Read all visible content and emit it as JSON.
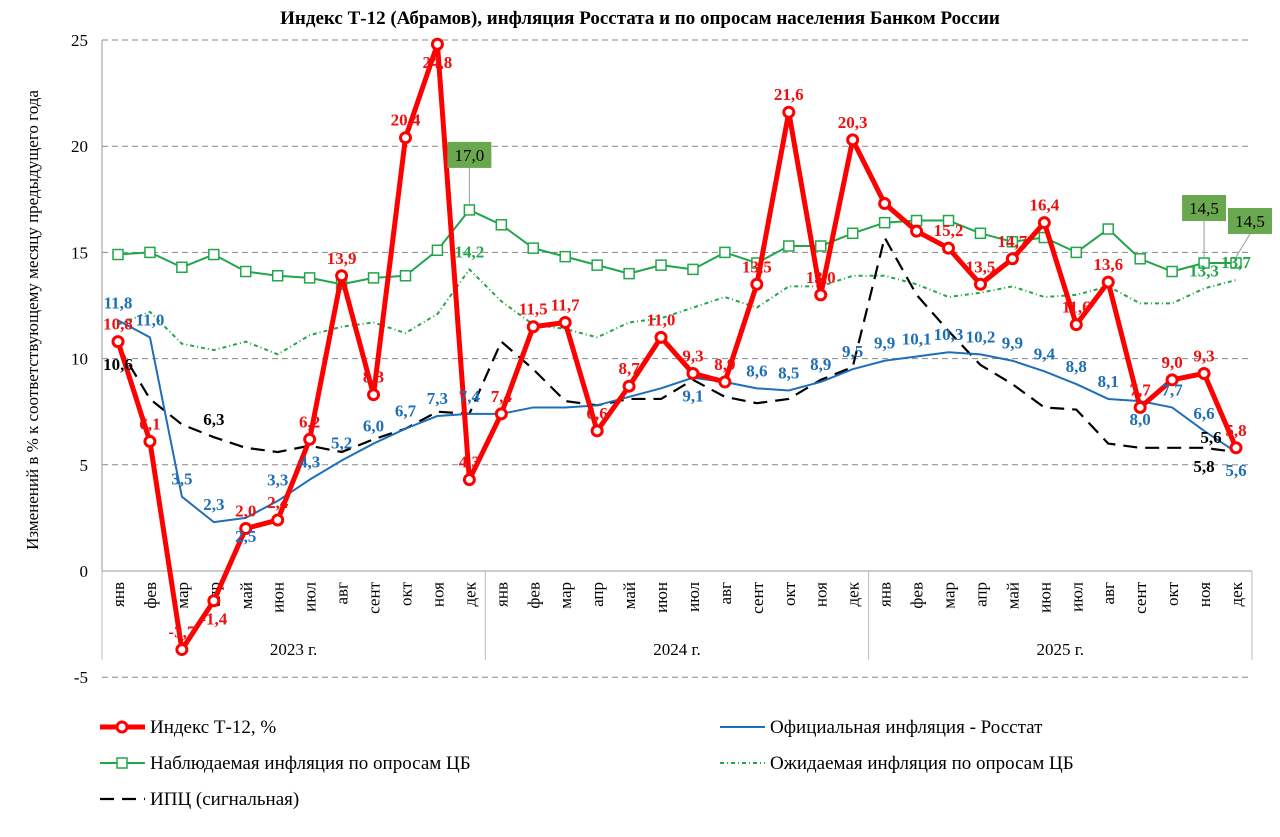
{
  "chart_data": {
    "type": "line",
    "title": "Индекс Т-12 (Абрамов), инфляция Росстата и по опросам населения Банком России",
    "ylabel": "Изменений в % к соответствующему месяцу предыдущего года",
    "xlabel": "",
    "ylim": [
      -5,
      25
    ],
    "yticks": [
      -5,
      0,
      5,
      10,
      15,
      20,
      25
    ],
    "grid": "horizontal dashed",
    "legend_position": "bottom",
    "categories": [
      "янв",
      "фев",
      "мар",
      "апр",
      "май",
      "июн",
      "июл",
      "авг",
      "сент",
      "окт",
      "ноя",
      "дек",
      "янв",
      "фев",
      "мар",
      "апр",
      "май",
      "июн",
      "июл",
      "авг",
      "сент",
      "окт",
      "ноя",
      "дек",
      "янв",
      "фев",
      "мар",
      "апр",
      "май",
      "июн",
      "июл",
      "авг",
      "сент",
      "окт",
      "ноя",
      "дек"
    ],
    "years": [
      "2023 г.",
      "2024 г.",
      "2025 г."
    ],
    "series": [
      {
        "name": "Индекс Т-12, %",
        "color": "#ff0000",
        "style": "thick line with circle markers",
        "values": [
          10.8,
          6.1,
          -3.7,
          -1.4,
          2.0,
          2.4,
          6.2,
          13.9,
          8.3,
          20.4,
          24.8,
          4.3,
          7.4,
          11.5,
          11.7,
          6.6,
          8.7,
          11.0,
          9.3,
          8.9,
          13.5,
          21.6,
          13.0,
          20.3,
          17.3,
          16.0,
          15.2,
          13.5,
          14.7,
          16.4,
          11.6,
          13.6,
          7.7,
          9.0,
          9.3,
          5.8
        ],
        "labels": [
          "10,8",
          "6,1",
          "-3,7",
          "-1,4",
          "2,0",
          "2,4",
          "6,2",
          "13,9",
          "8,3",
          "20,4",
          "24,8",
          "4,3",
          "7,4",
          "11,5",
          "11,7",
          "6,6",
          "8,7",
          "11,0",
          "9,3",
          "8,9",
          "13,5",
          "21,6",
          "13,0",
          "20,3",
          null,
          null,
          "15,2",
          "13,5",
          "14,7",
          "16,4",
          "11,6",
          "13,6",
          "7,7",
          "9,0",
          "9,3",
          "5,8"
        ]
      },
      {
        "name": "Официальная инфляция - Росстат",
        "color": "#1f6fb8",
        "style": "solid line",
        "values": [
          11.8,
          11.0,
          3.5,
          2.3,
          2.5,
          3.3,
          4.3,
          5.2,
          6.0,
          6.7,
          7.3,
          7.4,
          7.4,
          7.7,
          7.7,
          7.8,
          8.2,
          8.6,
          9.1,
          8.9,
          8.6,
          8.5,
          8.9,
          9.5,
          9.9,
          10.1,
          10.3,
          10.2,
          9.9,
          9.4,
          8.8,
          8.1,
          8.0,
          7.7,
          6.6,
          5.6
        ],
        "labels": [
          "11,8",
          "11,0",
          "3,5",
          "2,3",
          "2,5",
          "3,3",
          "4,3",
          "5,2",
          "6,0",
          "6,7",
          "7,3",
          "7,4",
          null,
          null,
          null,
          null,
          null,
          null,
          "9,1",
          null,
          "8,6",
          "8,5",
          "8,9",
          "9,5",
          "9,9",
          "10,1",
          "10,3",
          "10,2",
          "9,9",
          "9,4",
          "8,8",
          "8,1",
          "8,0",
          "7,7",
          "6,6",
          "5,6"
        ]
      },
      {
        "name": "Наблюдаемая инфляция по опросам ЦБ",
        "color": "#22a64a",
        "style": "line with hollow square markers",
        "values": [
          14.9,
          15.0,
          14.3,
          14.9,
          14.1,
          13.9,
          13.8,
          13.5,
          13.8,
          13.9,
          15.1,
          17.0,
          16.3,
          15.2,
          14.8,
          14.4,
          14.0,
          14.4,
          14.2,
          15.0,
          14.5,
          15.3,
          15.3,
          15.9,
          16.4,
          16.5,
          16.5,
          15.9,
          15.5,
          15.7,
          15.0,
          16.1,
          14.7,
          14.1,
          14.5,
          14.5
        ],
        "labels": [
          null,
          null,
          null,
          null,
          null,
          null,
          null,
          null,
          null,
          null,
          null,
          "17,0",
          null,
          null,
          null,
          null,
          null,
          null,
          null,
          null,
          null,
          null,
          null,
          null,
          null,
          null,
          null,
          null,
          null,
          null,
          null,
          null,
          null,
          null,
          "14,5",
          "14,5"
        ]
      },
      {
        "name": "Ожидаемая инфляция по опросам ЦБ",
        "color": "#22a64a",
        "style": "dash-dot line",
        "values": [
          11.6,
          12.2,
          10.7,
          10.4,
          10.8,
          10.2,
          11.1,
          11.5,
          11.7,
          11.2,
          12.1,
          14.2,
          12.7,
          11.6,
          11.4,
          11.0,
          11.7,
          11.9,
          12.4,
          12.9,
          12.4,
          13.4,
          13.4,
          13.9,
          13.9,
          13.5,
          12.9,
          13.1,
          13.4,
          12.9,
          13.0,
          13.4,
          12.6,
          12.6,
          13.3,
          13.7
        ],
        "labels": [
          null,
          null,
          null,
          null,
          null,
          null,
          null,
          null,
          null,
          null,
          null,
          "14,2",
          null,
          null,
          null,
          null,
          null,
          null,
          null,
          null,
          null,
          null,
          null,
          null,
          null,
          null,
          null,
          null,
          null,
          null,
          null,
          null,
          null,
          null,
          "13,3",
          "13,7"
        ]
      },
      {
        "name": "ИПЦ (сигнальная)",
        "color": "#000000",
        "style": "long dashed line",
        "values": [
          10.6,
          8.1,
          6.9,
          6.3,
          5.8,
          5.6,
          5.9,
          5.6,
          6.2,
          6.7,
          7.5,
          7.4,
          10.8,
          9.5,
          8.0,
          7.8,
          8.1,
          8.1,
          9.0,
          8.2,
          7.9,
          8.1,
          9.0,
          9.6,
          15.7,
          13.0,
          11.3,
          9.7,
          8.8,
          7.7,
          7.6,
          6.0,
          5.8,
          5.8,
          5.8,
          5.6
        ],
        "labels": [
          "10,6",
          null,
          null,
          "6,3",
          null,
          null,
          null,
          null,
          null,
          null,
          null,
          null,
          null,
          null,
          null,
          null,
          null,
          null,
          null,
          null,
          null,
          null,
          null,
          null,
          null,
          null,
          null,
          null,
          null,
          null,
          null,
          null,
          null,
          null,
          "5,8",
          "5,6"
        ]
      }
    ]
  }
}
